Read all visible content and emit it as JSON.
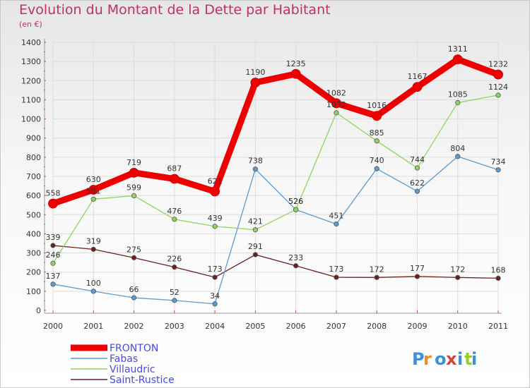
{
  "chart_data": {
    "type": "line",
    "title": "Evolution du Montant de la Dette par Habitant",
    "subtitle": "(en €)",
    "x": [
      "2000",
      "2001",
      "2002",
      "2003",
      "2004",
      "2005",
      "2006",
      "2007",
      "2008",
      "2009",
      "2010",
      "2011"
    ],
    "ylim": [
      0,
      1400
    ],
    "yticks": [
      "0",
      "100",
      "200",
      "300",
      "400",
      "500",
      "600",
      "700",
      "800",
      "900",
      "1000",
      "1100",
      "1200",
      "1300",
      "1400"
    ],
    "grid": true,
    "legend_position": "bottom-left",
    "series": [
      {
        "name": "Saint-Rustice",
        "color": "#6b1f1f",
        "values": [
          339,
          319,
          275,
          226,
          173,
          291,
          233,
          173,
          172,
          177,
          172,
          168
        ]
      },
      {
        "name": "Fabas",
        "color": "#5a9bd4",
        "values": [
          137,
          100,
          66,
          52,
          34,
          738,
          526,
          451,
          740,
          622,
          804,
          734
        ]
      },
      {
        "name": "Villaudric",
        "color": "#8fd45c",
        "values": [
          246,
          581,
          599,
          476,
          439,
          421,
          526,
          1032,
          885,
          744,
          1085,
          1124
        ]
      },
      {
        "name": "FRONTON",
        "color": "#ee0000",
        "values": [
          558,
          630,
          719,
          687,
          621,
          1190,
          1235,
          1082,
          1016,
          1167,
          1311,
          1232
        ]
      }
    ],
    "legend_order": [
      "FRONTON",
      "Fabas",
      "Villaudric",
      "Saint-Rustice"
    ]
  },
  "logo": {
    "text": "Proxiti",
    "letter_colors": [
      "#3d8fd8",
      "#e8902a",
      "#3d8fd8",
      "#d94040",
      "#3d8fd8",
      "#9acd32",
      "#3d8fd8"
    ]
  }
}
